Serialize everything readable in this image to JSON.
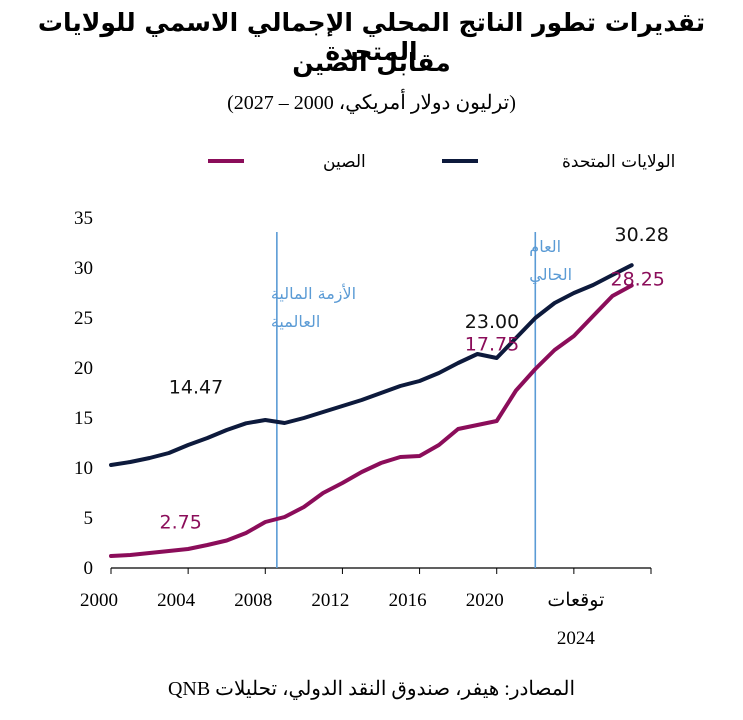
{
  "title_line1": "تقديرات تطور الناتج المحلي الإجمالي الاسمي للولايات المتحدة",
  "title_line2": "مقابل الصين",
  "subtitle": "(ترليون دولار أمريكي، 2000 – 2027)",
  "source": "المصادر: هيفر، صندوق النقد الدولي، تحليلات QNB",
  "colors": {
    "us": "#0d1a3c",
    "china": "#8b0d5a",
    "annotation": "#5b9bd5"
  },
  "chart_data": {
    "type": "line",
    "x": [
      2000,
      2001,
      2002,
      2003,
      2004,
      2005,
      2006,
      2007,
      2008,
      2009,
      2010,
      2011,
      2012,
      2013,
      2014,
      2015,
      2016,
      2017,
      2018,
      2019,
      2020,
      2021,
      2022,
      2023,
      2024,
      2025,
      2026,
      2027
    ],
    "series": [
      {
        "name": "الولايات المتحدة",
        "key": "us",
        "values": [
          10.3,
          10.6,
          11.0,
          11.5,
          12.3,
          13.0,
          13.8,
          14.47,
          14.8,
          14.5,
          15.0,
          15.6,
          16.2,
          16.8,
          17.5,
          18.2,
          18.7,
          19.5,
          20.5,
          21.4,
          21.0,
          23.0,
          25.0,
          26.5,
          27.5,
          28.3,
          29.3,
          30.28
        ]
      },
      {
        "name": "الصين",
        "key": "china",
        "values": [
          1.2,
          1.3,
          1.5,
          1.7,
          1.9,
          2.3,
          2.75,
          3.5,
          4.6,
          5.1,
          6.1,
          7.5,
          8.5,
          9.6,
          10.5,
          11.1,
          11.2,
          12.3,
          13.9,
          14.3,
          14.7,
          17.75,
          19.9,
          21.8,
          23.2,
          25.2,
          27.2,
          28.25
        ]
      }
    ],
    "data_labels": [
      {
        "series": "us",
        "x": 2007,
        "text": "14.47"
      },
      {
        "series": "us",
        "x": 2021,
        "text": "23.00"
      },
      {
        "series": "us",
        "x": 2027,
        "text": "30.28"
      },
      {
        "series": "china",
        "x": 2006,
        "text": "2.75"
      },
      {
        "series": "china",
        "x": 2021,
        "text": "17.75"
      },
      {
        "series": "china",
        "x": 2027,
        "text": "28.25"
      }
    ],
    "y_ticks": [
      "0",
      "5",
      "10",
      "15",
      "20",
      "25",
      "30",
      "35"
    ],
    "x_ticks": [
      "2000",
      "2004",
      "2008",
      "2012",
      "2016",
      "2020"
    ],
    "x_extra_label_line1": "توقعات",
    "x_extra_label_line2": "2024",
    "ylim": [
      0,
      35
    ],
    "xlim": [
      2000,
      2028
    ],
    "vlines": [
      {
        "x": 2008.6,
        "label_line1": "الأزمة المالية",
        "label_line2": "العالمية"
      },
      {
        "x": 2022.0,
        "label_line1": "العام",
        "label_line2": "الحالي"
      }
    ],
    "legend_position": "top",
    "grid": false
  }
}
